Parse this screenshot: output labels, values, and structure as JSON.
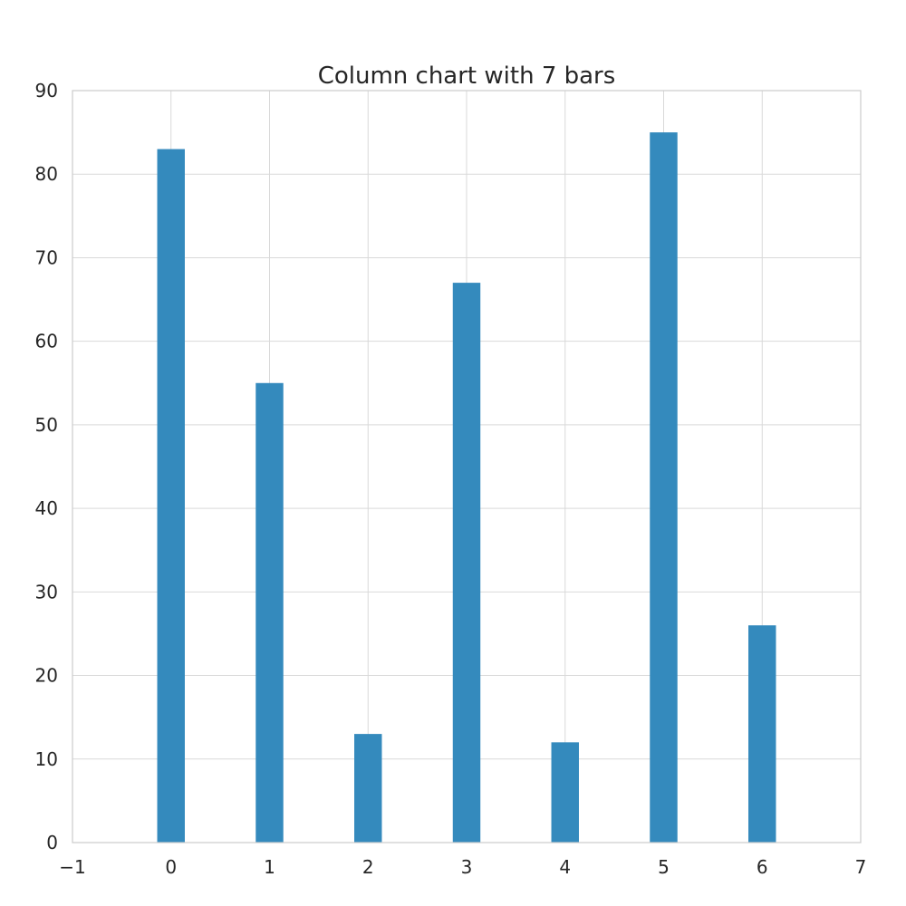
{
  "chart_data": {
    "type": "bar",
    "title": "Column chart with 7 bars",
    "xlabel": "",
    "ylabel": "",
    "x": [
      0,
      1,
      2,
      3,
      4,
      5,
      6
    ],
    "values": [
      83,
      55,
      13,
      67,
      12,
      85,
      26
    ],
    "xlim": [
      -1,
      7
    ],
    "ylim": [
      0,
      90
    ],
    "xticks": [
      "−1",
      "0",
      "1",
      "2",
      "3",
      "4",
      "5",
      "6",
      "7"
    ],
    "yticks": [
      "0",
      "10",
      "20",
      "30",
      "40",
      "50",
      "60",
      "70",
      "80",
      "90"
    ],
    "bar_width": 0.28,
    "grid": true,
    "bar_color": "#348abd"
  }
}
